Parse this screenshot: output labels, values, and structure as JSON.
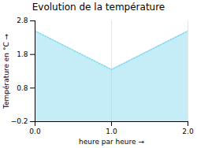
{
  "chart_data": {
    "type": "area",
    "title": "Evolution de la température",
    "x_label": "heure par heure",
    "y_label": "Température en °C",
    "x": [
      0,
      1,
      2
    ],
    "values": [
      2.5,
      1.35,
      2.5
    ],
    "xlim": [
      0,
      2
    ],
    "ylim": [
      -0.2,
      2.8
    ],
    "xticks": [
      0,
      1,
      2
    ],
    "yticks": [
      -0.2,
      0.8,
      1.8,
      2.8
    ],
    "color": "#7dd8f0",
    "line_style": "dotted",
    "grid": "x"
  }
}
